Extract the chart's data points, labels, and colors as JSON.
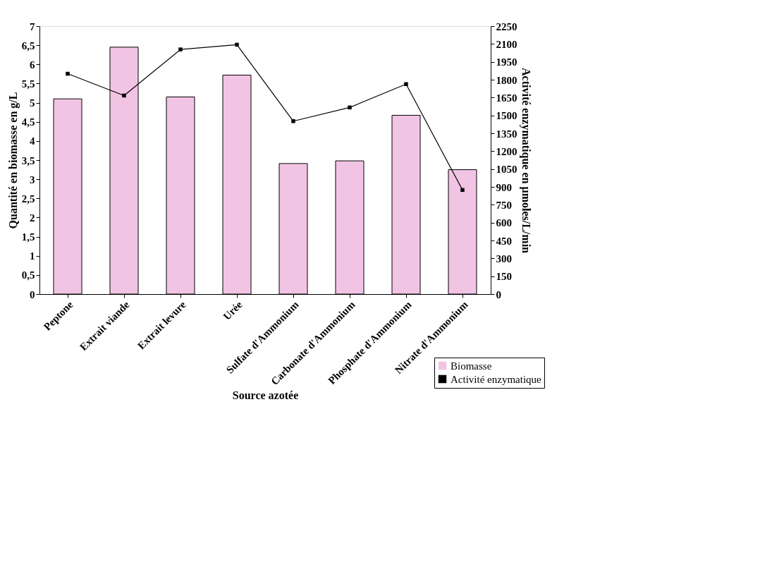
{
  "chart_data": {
    "type": "bar",
    "xlabel": "Source azotée",
    "ylabel": "Quantité en biomasse en g/L",
    "y2label": "Activité enzymatique en µmoles/L/min",
    "categories": [
      "Peptone",
      "Extrait viande",
      "Extrait levure",
      "Urée",
      "Sulfate d'Ammonium",
      "Carbonate d'Ammonium",
      "Phosphate d'Ammonium",
      "Nitrate d'Ammonium"
    ],
    "series": [
      {
        "name": "Biomasse",
        "color": "#f2c4e4",
        "values": [
          5.1,
          6.45,
          5.15,
          5.72,
          3.41,
          3.48,
          4.67,
          3.25
        ]
      },
      {
        "name": "Activité enzymatique",
        "type": "line",
        "axis": "y2",
        "color": "#000000",
        "values": [
          1850,
          1667,
          2054,
          2094,
          1452,
          1567,
          1763,
          874
        ]
      }
    ],
    "ylim": [
      0,
      7
    ],
    "yticks": [
      0,
      {
        "value": 0.5,
        "label": "0,5"
      },
      1,
      {
        "value": 1.5,
        "label": "1,5"
      },
      2,
      {
        "value": 2.5,
        "label": "2,5"
      },
      3,
      {
        "value": 3.5,
        "label": "3,5"
      },
      4,
      {
        "value": 4.5,
        "label": "4,5"
      },
      5,
      {
        "value": 5.5,
        "label": "5,5"
      },
      6,
      {
        "value": 6.5,
        "label": "6,5"
      },
      7
    ],
    "y2lim": [
      0,
      2250
    ],
    "y2ticks": [
      0,
      150,
      300,
      450,
      600,
      750,
      900,
      1050,
      1200,
      1350,
      1500,
      1650,
      1800,
      1950,
      2100,
      2250
    ],
    "legend": "bottom right",
    "grid": false,
    "marker": "square",
    "line_style": "solid"
  }
}
